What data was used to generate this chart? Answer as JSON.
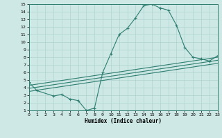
{
  "xlabel": "Humidex (Indice chaleur)",
  "xlim": [
    0,
    23
  ],
  "ylim": [
    1,
    15
  ],
  "xticks": [
    0,
    1,
    2,
    3,
    4,
    5,
    6,
    7,
    8,
    9,
    10,
    11,
    12,
    13,
    14,
    15,
    16,
    17,
    18,
    19,
    20,
    21,
    22,
    23
  ],
  "yticks": [
    1,
    2,
    3,
    4,
    5,
    6,
    7,
    8,
    9,
    10,
    11,
    12,
    13,
    14,
    15
  ],
  "bg_color": "#cde8e5",
  "grid_color": "#afd4d0",
  "line_color": "#2e7d70",
  "curve_x": [
    0,
    1,
    3,
    4,
    5,
    6,
    7,
    8,
    9,
    10,
    11,
    12,
    13,
    14,
    15,
    16,
    17,
    18,
    19,
    20,
    21,
    22,
    23
  ],
  "curve_y": [
    4.7,
    3.6,
    2.9,
    3.1,
    2.5,
    2.3,
    1.0,
    1.3,
    6.0,
    8.5,
    11.0,
    11.8,
    13.2,
    14.8,
    15.0,
    14.5,
    14.2,
    12.2,
    9.3,
    8.0,
    7.8,
    7.5,
    8.2
  ],
  "line1_x": [
    0,
    23
  ],
  "line1_y": [
    4.3,
    8.0
  ],
  "line2_x": [
    0,
    23
  ],
  "line2_y": [
    3.9,
    7.6
  ],
  "line3_x": [
    0,
    23
  ],
  "line3_y": [
    3.5,
    7.2
  ]
}
